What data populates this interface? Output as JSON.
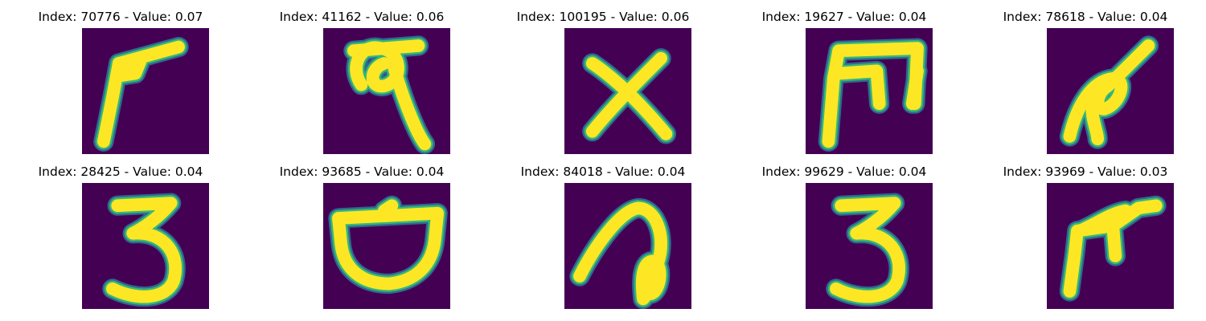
{
  "colors": {
    "background": "#440154",
    "edge_dark": "#31688e",
    "edge_mid": "#35b779",
    "stroke": "#fde725"
  },
  "images": [
    {
      "title": "Index: 70776 - Value: 0.07",
      "glyph": "glyph-hook-stroke"
    },
    {
      "title": "Index: 41162 - Value: 0.06",
      "glyph": "glyph-loop-tail"
    },
    {
      "title": "Index: 100195 - Value: 0.06",
      "glyph": "glyph-x"
    },
    {
      "title": "Index: 19627 - Value: 0.04",
      "glyph": "glyph-m"
    },
    {
      "title": "Index: 78618 - Value: 0.04",
      "glyph": "glyph-curl"
    },
    {
      "title": "Index: 28425 - Value: 0.04",
      "glyph": "glyph-three"
    },
    {
      "title": "Index: 93685 - Value: 0.04",
      "glyph": "glyph-bowl"
    },
    {
      "title": "Index: 84018 - Value: 0.04",
      "glyph": "glyph-loop-n"
    },
    {
      "title": "Index: 99629 - Value: 0.04",
      "glyph": "glyph-three"
    },
    {
      "title": "Index: 93969 - Value: 0.03",
      "glyph": "glyph-hook-pi"
    }
  ]
}
